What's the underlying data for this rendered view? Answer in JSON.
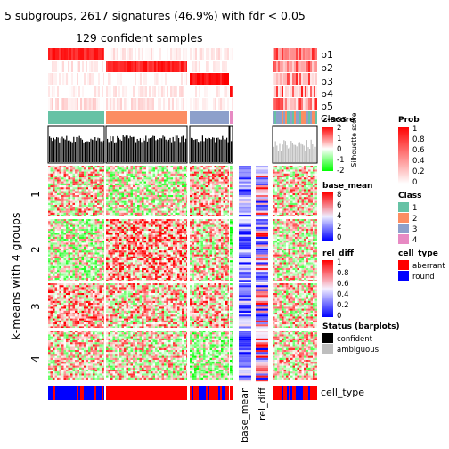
{
  "title": "5 subgroups, 2617 signatures (46.9%) with fdr < 0.05",
  "subtitle": "129 confident samples",
  "row_title": "k-means with 4 groups",
  "row_groups": [
    "1",
    "2",
    "3",
    "4"
  ],
  "track_labels": [
    "p1",
    "p2",
    "p3",
    "p4",
    "p5",
    "Class",
    "Silhouette score"
  ],
  "bottom_labels": [
    "base_mean",
    "rel_diff",
    "cell_type"
  ],
  "legends": {
    "zscore": {
      "title": "z-score",
      "ticks": [
        "2",
        "1",
        "0",
        "-1",
        "-2"
      ]
    },
    "prob": {
      "title": "Prob",
      "ticks": [
        "1",
        "0.8",
        "0.6",
        "0.4",
        "0.2",
        "0"
      ]
    },
    "base_mean": {
      "title": "base_mean",
      "ticks": [
        "8",
        "6",
        "4",
        "2",
        "0"
      ]
    },
    "class": {
      "title": "Class",
      "items": [
        {
          "label": "1",
          "color": "#66C2A5"
        },
        {
          "label": "2",
          "color": "#FC8D62"
        },
        {
          "label": "3",
          "color": "#8DA0CB"
        },
        {
          "label": "4",
          "color": "#E78AC3"
        }
      ]
    },
    "rel_diff": {
      "title": "rel_diff",
      "ticks": [
        "1",
        "0.8",
        "0.6",
        "0.4",
        "0.2",
        "0"
      ]
    },
    "cell_type": {
      "title": "cell_type",
      "items": [
        {
          "label": "aberrant",
          "color": "#FF0000"
        },
        {
          "label": "round",
          "color": "#0000FF"
        }
      ]
    },
    "status": {
      "title": "Status (barplots)",
      "items": [
        {
          "label": "confident",
          "color": "#000000"
        },
        {
          "label": "ambiguous",
          "color": "#BEBEBE"
        }
      ]
    }
  },
  "chart_data": {
    "type": "heatmap",
    "n_signatures": 2617,
    "signature_pct": 46.9,
    "fdr_threshold": 0.05,
    "n_subgroups": 5,
    "n_confident_samples": 129,
    "row_clusters": [
      "1",
      "2",
      "3",
      "4"
    ],
    "column_classes": [
      "1",
      "2",
      "3",
      "4"
    ],
    "value_scale": "z-score",
    "zscore_range": [
      -2,
      2
    ]
  },
  "colors": {
    "high": "#FF0000",
    "mid": "#FFFFFF",
    "low": "#00FF00",
    "base_mean_high": "#FF0000",
    "base_mean_low": "#0000FF",
    "rel_diff_high": "#FF0000",
    "rel_diff_low": "#0000FF"
  }
}
